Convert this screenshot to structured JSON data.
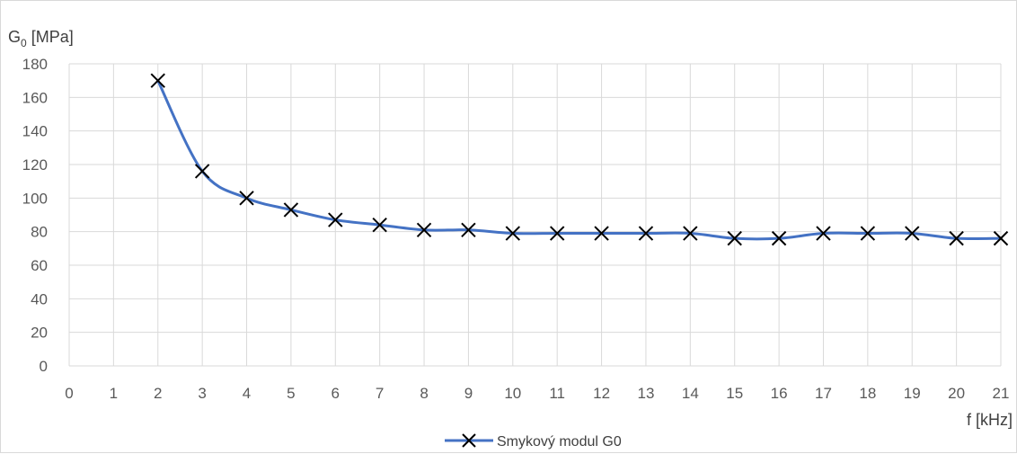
{
  "chart_data": {
    "type": "line",
    "ylabel_main": "G",
    "ylabel_sub": "0",
    "ylabel_unit": " [MPa]",
    "xlabel": "f [kHz]",
    "xlim": [
      0,
      21
    ],
    "ylim": [
      0,
      180
    ],
    "x_ticks": [
      0,
      1,
      2,
      3,
      4,
      5,
      6,
      7,
      8,
      9,
      10,
      11,
      12,
      13,
      14,
      15,
      16,
      17,
      18,
      19,
      20,
      21
    ],
    "y_ticks": [
      0,
      20,
      40,
      60,
      80,
      100,
      120,
      140,
      160,
      180
    ],
    "grid": "vertical and horizontal major",
    "legend_position": "bottom",
    "series": [
      {
        "name": "Smykový modul G0",
        "color": "#4472C4",
        "marker": "x",
        "smooth": true,
        "x": [
          2,
          3,
          4,
          5,
          6,
          7,
          8,
          9,
          10,
          11,
          12,
          13,
          14,
          15,
          16,
          17,
          18,
          19,
          20,
          21
        ],
        "y": [
          170,
          116,
          100,
          93,
          87,
          84,
          81,
          81,
          79,
          79,
          79,
          79,
          79,
          76,
          76,
          79,
          79,
          79,
          76,
          76
        ]
      }
    ]
  }
}
